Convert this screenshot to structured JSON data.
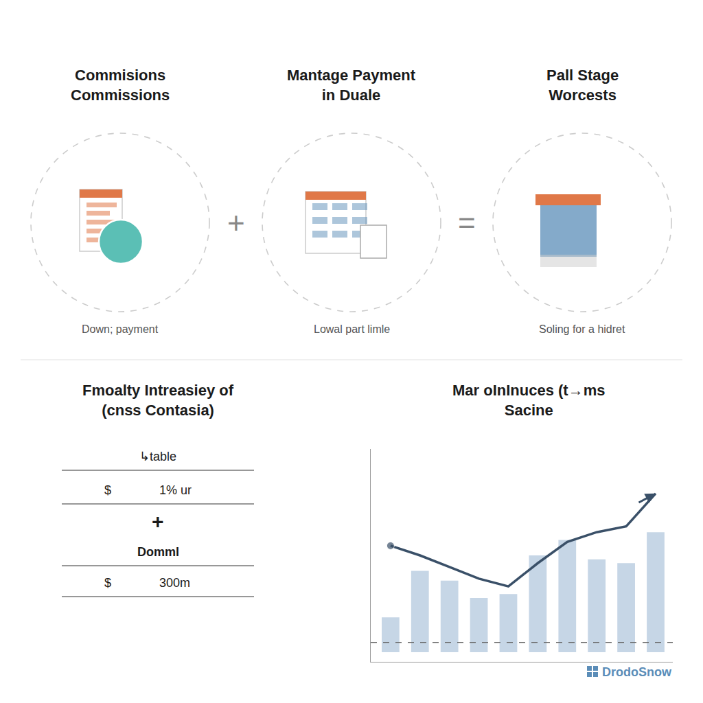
{
  "chart_data": {
    "type": "bar",
    "title": "Mar oInInuces (t→ms\nSacine",
    "categories": [
      null,
      null,
      null,
      null,
      null,
      null,
      null,
      null,
      null,
      null
    ],
    "series": [
      {
        "type": "bar",
        "color": "#b8cce0",
        "values": [
          0.18,
          0.42,
          0.37,
          0.28,
          0.3,
          0.5,
          0.58,
          0.48,
          0.46,
          0.62
        ]
      },
      {
        "type": "line",
        "color": "#3a5068",
        "line_style": "solid",
        "values": [
          0.55,
          0.5,
          0.44,
          0.38,
          0.34,
          0.46,
          0.57,
          0.62,
          0.65,
          0.82
        ]
      }
    ],
    "reference_line": 0.05,
    "ylim": [
      -0.05,
      1.05
    ],
    "grid": false,
    "tick_labels": false,
    "annotations": [
      "Commisions\nCommissions",
      "Mantage Payment\nin Duale",
      "Pall Stage\nWorcests",
      "Down; payment",
      "Lowal part limle",
      "Soling for a hidret",
      "+",
      "=",
      "Fmoalty Intreasiey of\n(cnss Contasia)",
      "↳table",
      "$",
      "1% ur",
      "+",
      "Domml",
      "$",
      "300m",
      "DrodoSnow"
    ]
  }
}
